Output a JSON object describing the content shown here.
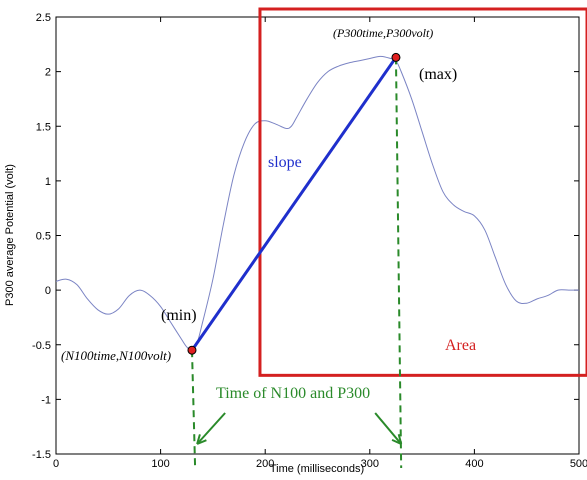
{
  "chart_data": {
    "type": "line",
    "xlabel": "Time (milliseconds)",
    "ylabel": "P300 average Potential (volt)",
    "xlim": [
      0,
      500
    ],
    "ylim": [
      -1.5,
      2.5
    ],
    "x_ticks": [
      0,
      100,
      200,
      300,
      400,
      500
    ],
    "y_ticks": [
      -1.5,
      -1,
      -0.5,
      0,
      0.5,
      1,
      1.5,
      2,
      2.5
    ],
    "x_tick_labels": [
      "0",
      "100",
      "200",
      "300",
      "400",
      "500"
    ],
    "y_tick_labels": [
      "-1.5",
      "-1",
      "-0.5",
      "0",
      "0.5",
      "1",
      "1.5",
      "2",
      "2.5"
    ],
    "grid": false,
    "series": [
      {
        "color": "#7b84c4",
        "x": [
          0,
          10,
          20,
          30,
          40,
          50,
          60,
          70,
          80,
          90,
          100,
          110,
          120,
          125,
          130,
          135,
          140,
          150,
          160,
          170,
          180,
          190,
          200,
          210,
          220,
          225,
          230,
          240,
          250,
          260,
          270,
          280,
          290,
          300,
          310,
          320,
          325,
          330,
          340,
          350,
          360,
          370,
          380,
          390,
          400,
          410,
          420,
          430,
          440,
          450,
          460,
          470,
          480,
          490,
          500
        ],
        "y": [
          0.08,
          0.1,
          0.05,
          -0.08,
          -0.18,
          -0.22,
          -0.17,
          -0.05,
          0.0,
          -0.05,
          -0.15,
          -0.3,
          -0.45,
          -0.52,
          -0.55,
          -0.48,
          -0.3,
          0.1,
          0.6,
          1.05,
          1.35,
          1.52,
          1.55,
          1.52,
          1.48,
          1.5,
          1.58,
          1.75,
          1.9,
          2.0,
          2.05,
          2.08,
          2.1,
          2.12,
          2.14,
          2.12,
          2.1,
          2.0,
          1.75,
          1.45,
          1.15,
          0.9,
          0.78,
          0.72,
          0.68,
          0.55,
          0.3,
          0.05,
          -0.1,
          -0.12,
          -0.08,
          -0.05,
          0.0,
          0.0,
          0.0
        ]
      }
    ],
    "slope_line": {
      "from": [
        130,
        -0.55
      ],
      "to": [
        325,
        2.13
      ],
      "color": "#1f2fcc"
    },
    "min_point": {
      "x": 130,
      "y": -0.55
    },
    "max_point": {
      "x": 325,
      "y": 2.13
    },
    "area_box": {
      "x_range": [
        195,
        500
      ],
      "y_range": [
        -0.78,
        2.5
      ],
      "color": "#d42020"
    },
    "annotations": {
      "max_coord": "(P300time,P300volt)",
      "max_label": "(max)",
      "min_label": "(min)",
      "min_coord": "(N100time,N100volt)",
      "slope": "slope",
      "area": "Area",
      "time_label": "Time of N100 and P300"
    },
    "colors": {
      "curve": "#7b84c4",
      "slope": "#1f2fcc",
      "box": "#d42020",
      "guide": "#2a8a2a",
      "point_fill": "#e02020"
    }
  }
}
